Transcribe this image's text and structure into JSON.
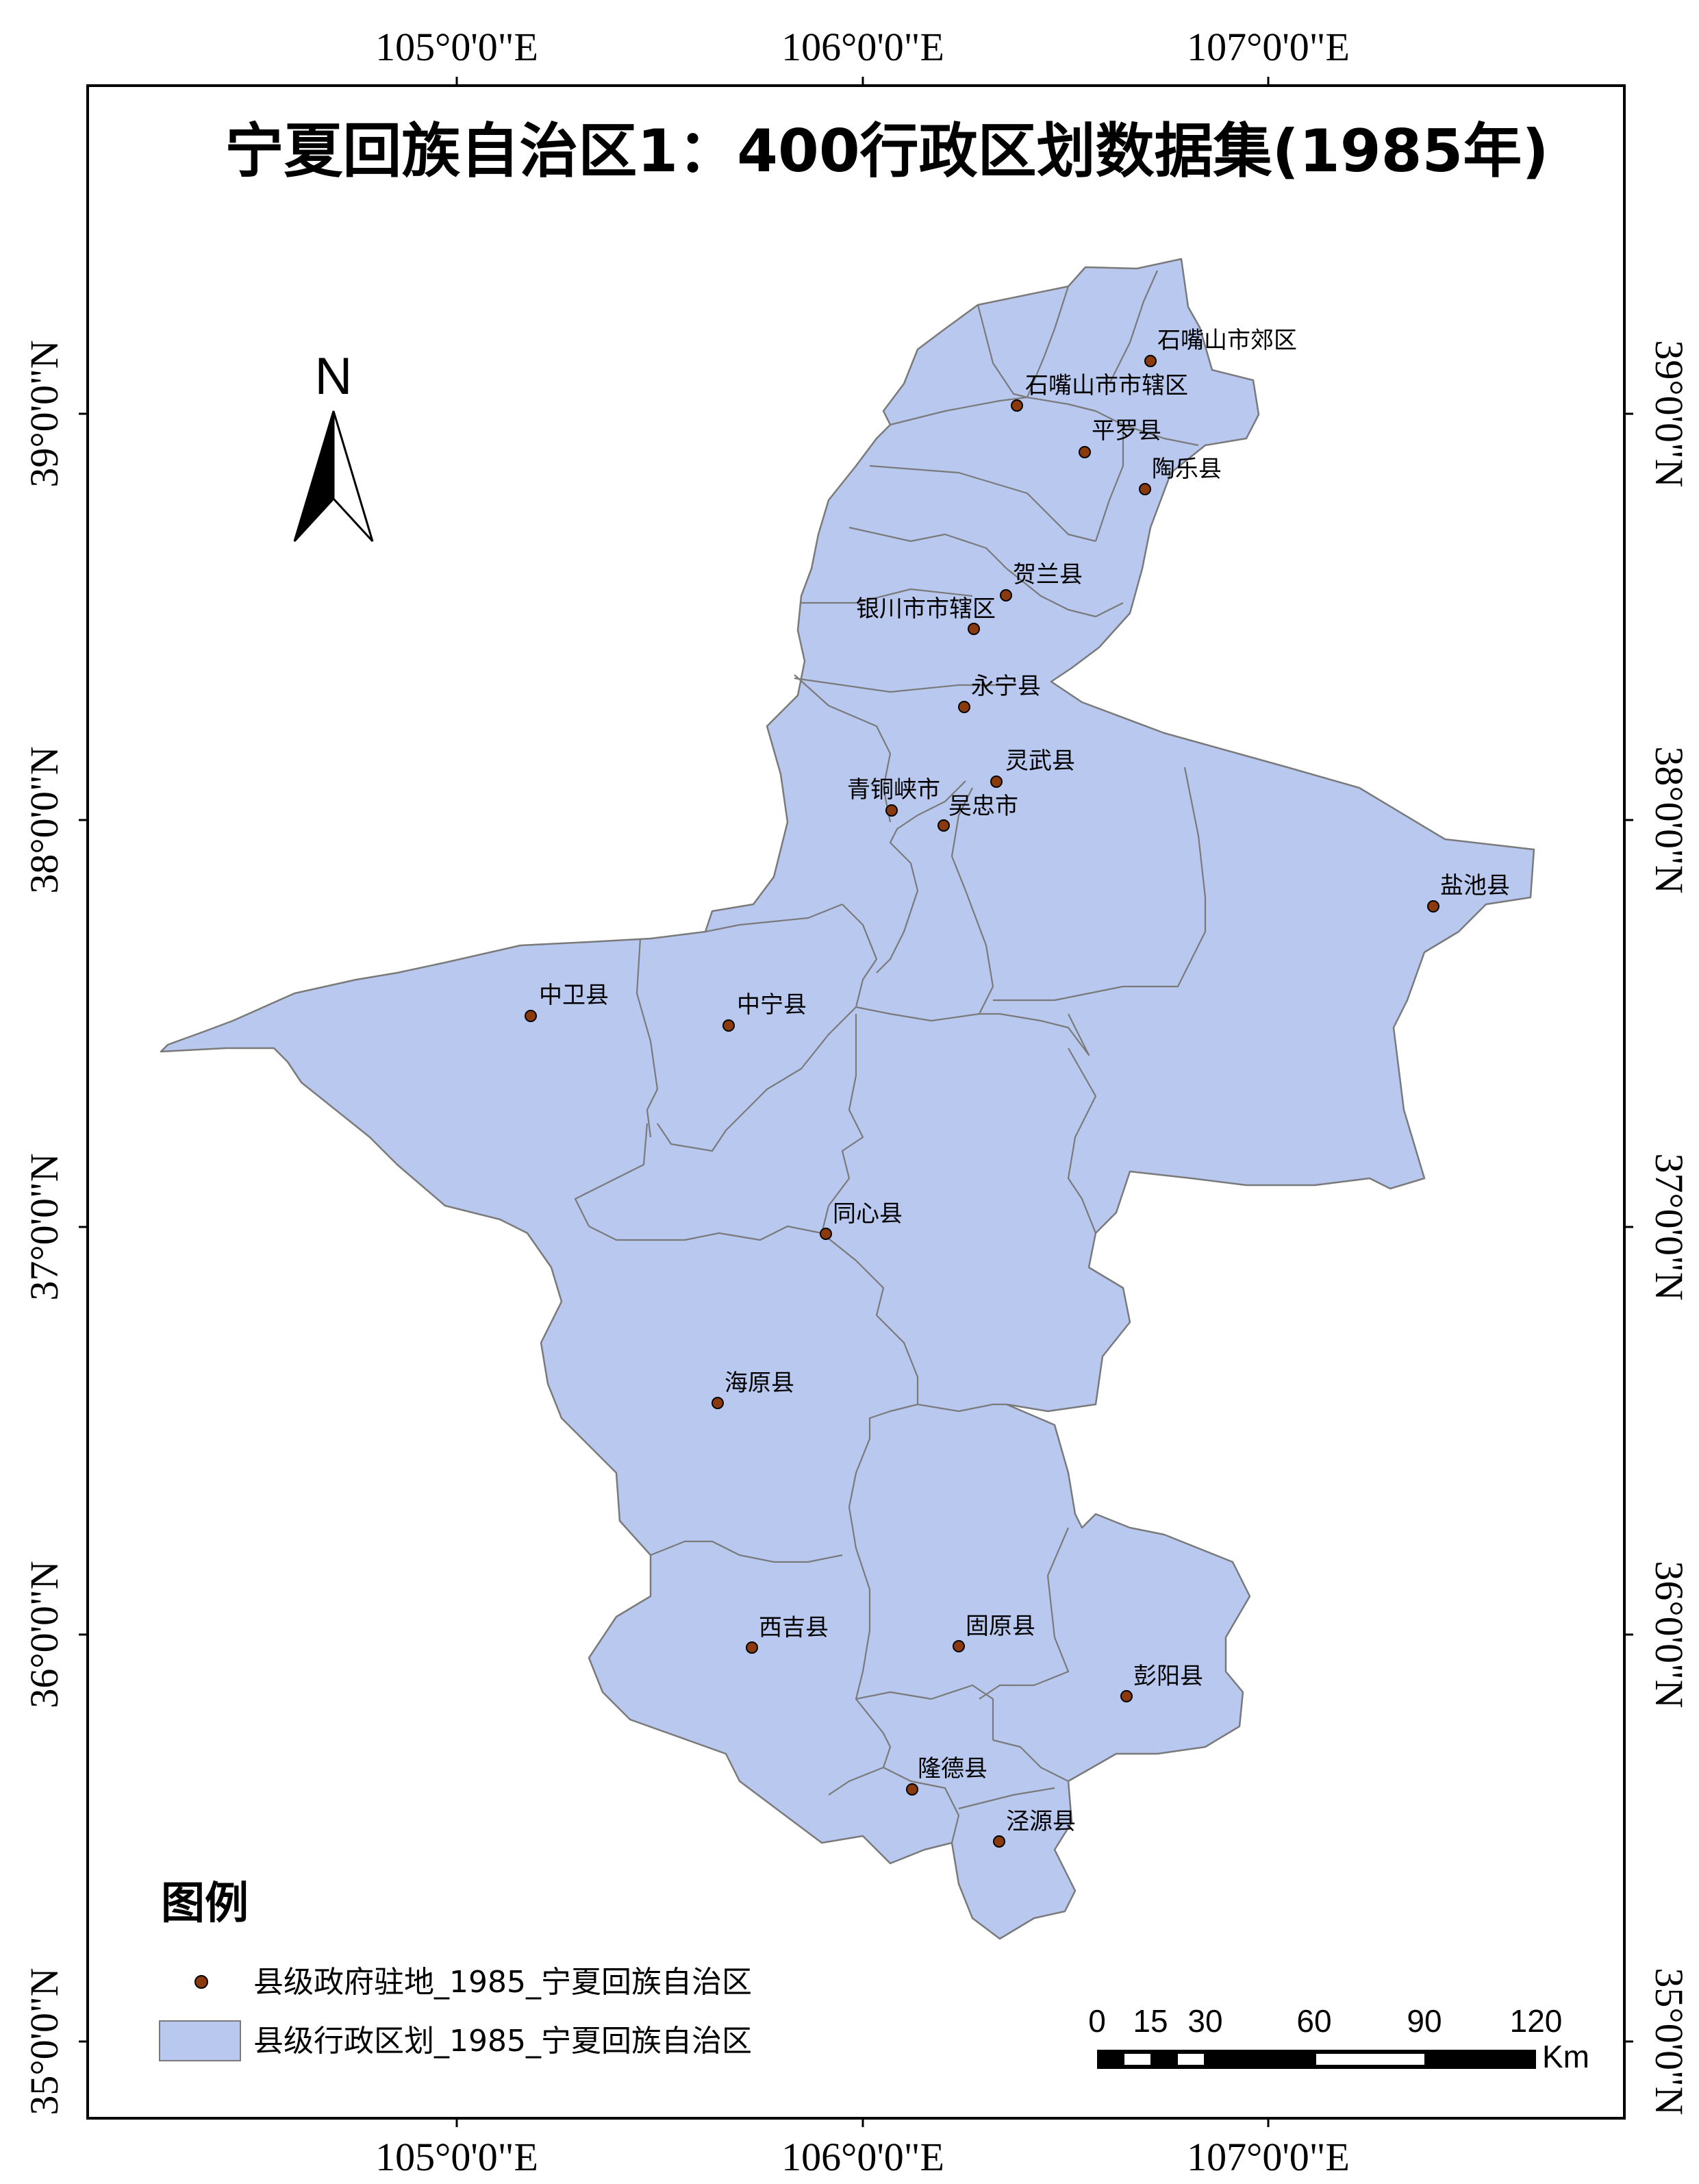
{
  "title": "宁夏回族自治区1：400行政区划数据集(1985年)",
  "longitude_labels": [
    "105°0'0\"E",
    "106°0'0\"E",
    "107°0'0\"E"
  ],
  "latitude_labels": [
    "35°0'0\"N",
    "36°0'0\"N",
    "37°0'0\"N",
    "38°0'0\"N",
    "39°0'0\"N"
  ],
  "north_arrow": {
    "label": "N",
    "icon": "north-arrow-icon"
  },
  "counties": [
    {
      "name": "石嘴山市郊区"
    },
    {
      "name": "石嘴山市市辖区"
    },
    {
      "name": "平罗县"
    },
    {
      "name": "陶乐县"
    },
    {
      "name": "贺兰县"
    },
    {
      "name": "银川市市辖区"
    },
    {
      "name": "永宁县"
    },
    {
      "name": "灵武县"
    },
    {
      "name": "青铜峡市"
    },
    {
      "name": "吴忠市"
    },
    {
      "name": "盐池县"
    },
    {
      "name": "中卫县"
    },
    {
      "name": "中宁县"
    },
    {
      "name": "同心县"
    },
    {
      "name": "海原县"
    },
    {
      "name": "西吉县"
    },
    {
      "name": "固原县"
    },
    {
      "name": "彭阳县"
    },
    {
      "name": "隆德县"
    },
    {
      "name": "泾源县"
    }
  ],
  "legend": {
    "title": "图例",
    "items": [
      {
        "label": "县级政府驻地_1985_宁夏回族自治区",
        "symbol": "point",
        "color": "#8b3a0e"
      },
      {
        "label": "县级行政区划_1985_宁夏回族自治区",
        "symbol": "polygon",
        "color": "#b8c8ef"
      }
    ]
  },
  "scale_bar": {
    "ticks": [
      "0",
      "15",
      "30",
      "60",
      "90",
      "120"
    ],
    "unit": "Km"
  },
  "colors": {
    "region_fill": "#b8c8ef",
    "boundary": "#7a7a7a",
    "seat": "#8b3a0e"
  }
}
